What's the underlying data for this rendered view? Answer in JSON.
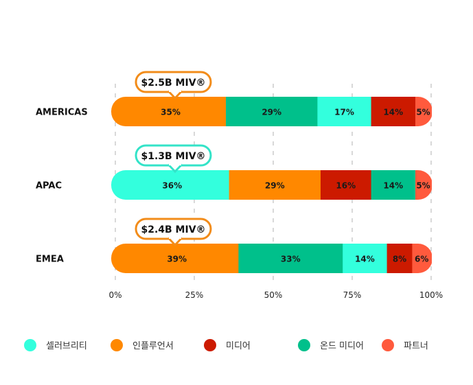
{
  "chart_data": {
    "type": "bar",
    "orientation": "horizontal",
    "stacked": true,
    "categories": [
      "AMERICAS",
      "APAC",
      "EMEA"
    ],
    "series": [
      {
        "name": "셀러브리티",
        "color": "#33FFDD"
      },
      {
        "name": "인플루언서",
        "color": "#FF8800"
      },
      {
        "name": "미디어",
        "color": "#CC1A00"
      },
      {
        "name": "온드 미디어",
        "color": "#00C08B"
      },
      {
        "name": "파트너",
        "color": "#FF5A3D"
      }
    ],
    "rows": [
      {
        "category": "AMERICAS",
        "badge": "$2.5B MIV®",
        "badge_color": "#F28C1A",
        "segments": [
          {
            "series": "인플루언서",
            "value": 35,
            "label": "35%"
          },
          {
            "series": "온드 미디어",
            "value": 29,
            "label": "29%"
          },
          {
            "series": "셀러브리티",
            "value": 17,
            "label": "17%"
          },
          {
            "series": "미디어",
            "value": 14,
            "label": "14%"
          },
          {
            "series": "파트너",
            "value": 5,
            "label": "5%"
          }
        ]
      },
      {
        "category": "APAC",
        "badge": "$1.3B MIV®",
        "badge_color": "#33E3C8",
        "segments": [
          {
            "series": "셀러브리티",
            "value": 36,
            "label": "36%"
          },
          {
            "series": "인플루언서",
            "value": 29,
            "label": "29%"
          },
          {
            "series": "미디어",
            "value": 16,
            "label": "16%"
          },
          {
            "series": "온드 미디어",
            "value": 14,
            "label": "14%"
          },
          {
            "series": "파트너",
            "value": 5,
            "label": "5%"
          }
        ]
      },
      {
        "category": "EMEA",
        "badge": "$2.4B MIV®",
        "badge_color": "#F28C1A",
        "segments": [
          {
            "series": "인플루언서",
            "value": 39,
            "label": "39%"
          },
          {
            "series": "온드 미디어",
            "value": 33,
            "label": "33%"
          },
          {
            "series": "셀러브리티",
            "value": 14,
            "label": "14%"
          },
          {
            "series": "미디어",
            "value": 8,
            "label": "8%"
          },
          {
            "series": "파트너",
            "value": 6,
            "label": "6%"
          }
        ]
      }
    ],
    "xlim": [
      0,
      100
    ],
    "x_ticks": [
      0,
      25,
      50,
      75,
      100
    ],
    "x_tick_labels": [
      "0%",
      "25%",
      "50%",
      "75%",
      "100%"
    ],
    "grid": true,
    "legend_position": "bottom"
  }
}
